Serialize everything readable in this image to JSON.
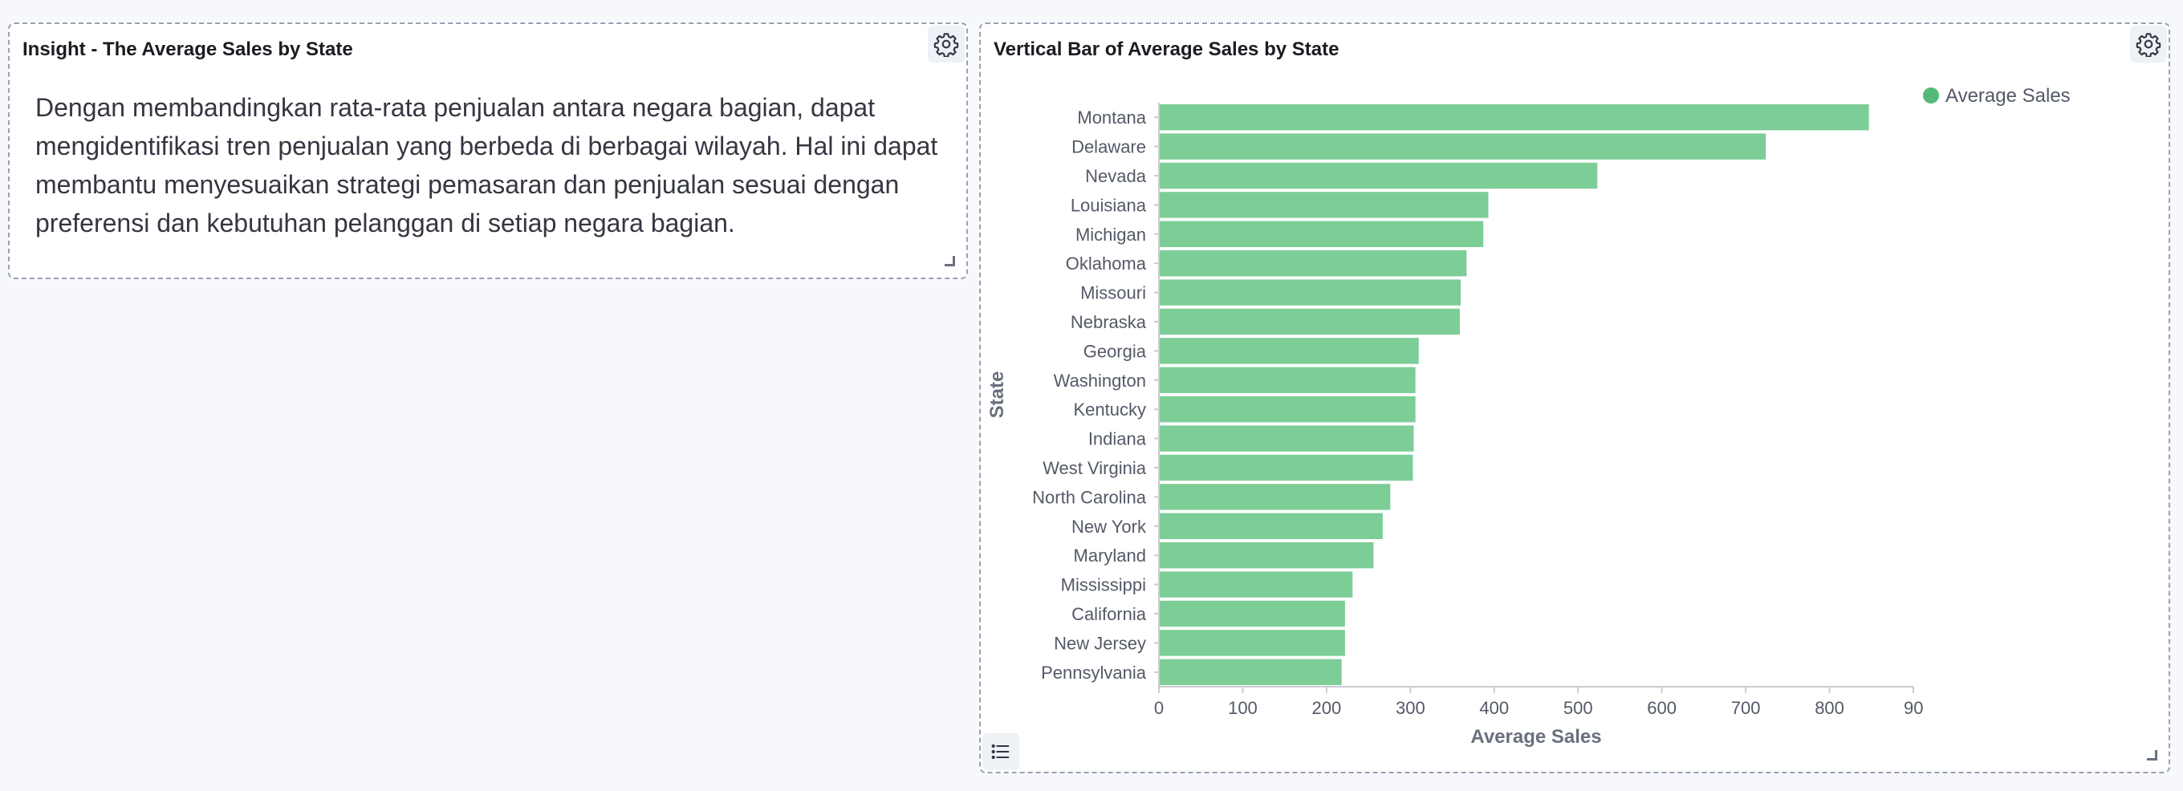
{
  "insight_panel": {
    "title": "Insight - The Average Sales by State",
    "text": "Dengan membandingkan rata-rata penjualan antara negara bagian, dapat mengidentifikasi tren penjualan yang berbeda di berbagai wilayah. Hal ini dapat membantu menyesuaikan strategi pemasaran dan penjualan sesuai dengan preferensi dan kebutuhan pelanggan di setiap negara bagian."
  },
  "chart_panel": {
    "title": "Vertical Bar of Average Sales by State"
  },
  "icons": {
    "settings": "gear-icon",
    "legend_toggle": "list-icon",
    "resize": "resize-handle-icon"
  },
  "chart_data": {
    "type": "bar",
    "orientation": "horizontal",
    "categories": [
      "Montana",
      "Delaware",
      "Nevada",
      "Louisiana",
      "Michigan",
      "Oklahoma",
      "Missouri",
      "Nebraska",
      "Georgia",
      "Washington",
      "Kentucky",
      "Indiana",
      "West Virginia",
      "North Carolina",
      "New York",
      "Maryland",
      "Mississippi",
      "California",
      "New Jersey",
      "Pennsylvania"
    ],
    "series": [
      {
        "name": "Average Sales",
        "color": "#7dcd97",
        "values": [
          847,
          724,
          523,
          393,
          387,
          367,
          360,
          359,
          310,
          306,
          306,
          304,
          303,
          276,
          267,
          256,
          231,
          222,
          222,
          218
        ]
      }
    ],
    "xlabel": "Average Sales",
    "ylabel": "State",
    "xlim": [
      0,
      900
    ],
    "x_ticks": [
      "0",
      "100",
      "200",
      "300",
      "400",
      "500",
      "600",
      "700",
      "800",
      "90"
    ],
    "grid": false,
    "legend_position": "top-right"
  }
}
